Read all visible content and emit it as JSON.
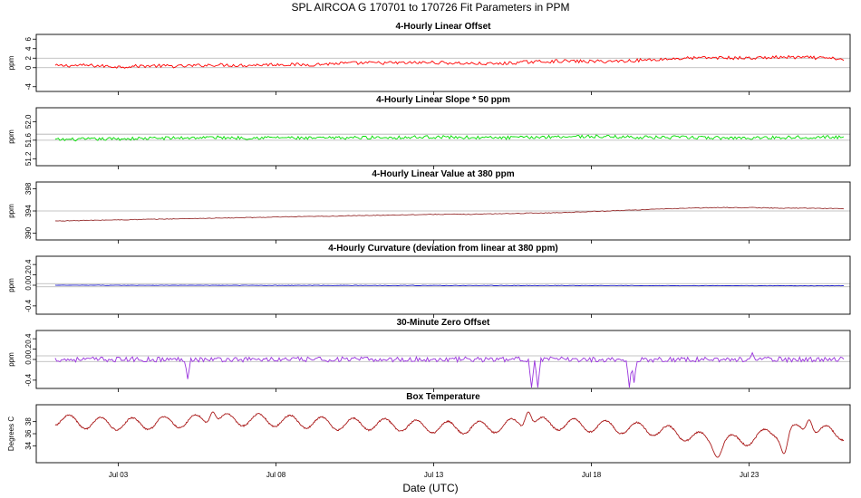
{
  "title": "SPL   AIRCOA G   170701 to 170726   Fit Parameters in PPM",
  "xlabel": "Date (UTC)",
  "x_tick_labels": [
    "Jul 03",
    "Jul 08",
    "Jul 13",
    "Jul 18",
    "Jul 23"
  ],
  "chart_data": [
    {
      "type": "line",
      "title": "4-Hourly Linear Offset",
      "ylabel": "ppm",
      "color": "#ff0000",
      "xlim": [
        0.4,
        26.2
      ],
      "ylim": [
        -5,
        7
      ],
      "yticks": [
        "-4",
        "0",
        "2",
        "4",
        "6"
      ],
      "ref_lines": [
        0,
        2
      ],
      "x": [
        1,
        2,
        3,
        4,
        5,
        6,
        7,
        8,
        9,
        10,
        11,
        12,
        13,
        14,
        15,
        16,
        17,
        18,
        19,
        20,
        21,
        22,
        23,
        24,
        25,
        26
      ],
      "values": [
        0.4,
        0.5,
        0.2,
        0.4,
        0.3,
        0.6,
        0.5,
        0.7,
        0.6,
        0.9,
        1.0,
        1.0,
        1.1,
        0.9,
        0.8,
        1.2,
        1.4,
        1.3,
        1.4,
        1.7,
        2.0,
        2.1,
        2.0,
        2.2,
        2.1,
        1.8
      ],
      "noise": 0.35
    },
    {
      "type": "line",
      "title": "4-Hourly Linear Slope * 50 ppm",
      "ylabel": "ppm",
      "color": "#00dd00",
      "xlim": [
        0.4,
        26.2
      ],
      "ylim": [
        51.05,
        52.3
      ],
      "yticks": [
        "51.2",
        "51.6",
        "52.0"
      ],
      "ref_lines": [
        51.6,
        51.73
      ],
      "x": [
        1,
        2,
        3,
        4,
        5,
        6,
        7,
        8,
        9,
        10,
        11,
        12,
        13,
        14,
        15,
        16,
        17,
        18,
        19,
        20,
        21,
        22,
        23,
        24,
        25,
        26
      ],
      "values": [
        51.61,
        51.62,
        51.63,
        51.64,
        51.65,
        51.66,
        51.65,
        51.66,
        51.64,
        51.65,
        51.66,
        51.66,
        51.67,
        51.66,
        51.65,
        51.66,
        51.68,
        51.68,
        51.67,
        51.66,
        51.66,
        51.65,
        51.65,
        51.66,
        51.67,
        51.66
      ],
      "noise": 0.035
    },
    {
      "type": "line",
      "title": "4-Hourly Linear Value at 380 ppm",
      "ylabel": "ppm",
      "color": "#993333",
      "xlim": [
        0.4,
        26.2
      ],
      "ylim": [
        388.8,
        399.2
      ],
      "yticks": [
        "390",
        "394",
        "398"
      ],
      "ref_lines": [
        394
      ],
      "x": [
        1,
        2,
        3,
        4,
        5,
        6,
        7,
        8,
        9,
        10,
        11,
        12,
        13,
        14,
        15,
        16,
        17,
        18,
        19,
        20,
        21,
        22,
        23,
        24,
        25,
        26
      ],
      "values": [
        392.2,
        392.3,
        392.4,
        392.5,
        392.6,
        392.7,
        392.8,
        392.9,
        393.0,
        393.1,
        393.2,
        393.3,
        393.4,
        393.4,
        393.5,
        393.6,
        393.7,
        393.9,
        394.1,
        394.3,
        394.5,
        394.6,
        394.6,
        394.5,
        394.5,
        394.4
      ],
      "noise": 0.06
    },
    {
      "type": "line",
      "title": "4-Hourly Curvature (deviation from linear at 380 ppm)",
      "ylabel": "ppm",
      "color": "#2222cc",
      "xlim": [
        0.4,
        26.2
      ],
      "ylim": [
        -0.56,
        0.56
      ],
      "yticks": [
        "-0.4",
        "0.0",
        "0.2",
        "0.4"
      ],
      "ref_lines": [
        -0.03,
        0.03
      ],
      "x": [
        1,
        26
      ],
      "values": [
        0.0,
        -0.01
      ],
      "noise": 0.004
    },
    {
      "type": "line",
      "title": "30-Minute Zero Offset",
      "ylabel": "ppm",
      "color": "#9933dd",
      "xlim": [
        0.4,
        26.2
      ],
      "ylim": [
        -0.56,
        0.56
      ],
      "yticks": [
        "-0.4",
        "0.0",
        "0.2",
        "0.4"
      ],
      "ref_lines": [
        -0.04,
        0.07
      ],
      "x": [
        1,
        26
      ],
      "values": [
        0.0,
        0.0
      ],
      "noise": 0.05,
      "spikes": [
        {
          "x": 5.2,
          "y": -0.38
        },
        {
          "x": 16.1,
          "y": -0.62
        },
        {
          "x": 16.3,
          "y": -0.58
        },
        {
          "x": 19.2,
          "y": -0.6
        },
        {
          "x": 19.35,
          "y": -0.45
        },
        {
          "x": 23.1,
          "y": 0.13
        }
      ]
    },
    {
      "type": "line",
      "title": "Box Temperature",
      "ylabel": "Degrees C",
      "color": "#aa1a1a",
      "xlim": [
        0.4,
        26.2
      ],
      "ylim": [
        31.2,
        40.8
      ],
      "yticks": [
        "34",
        "36",
        "38"
      ],
      "ref_lines": [],
      "x": [
        1,
        2,
        3,
        4,
        5,
        6,
        7,
        8,
        9,
        10,
        11,
        12,
        13,
        14,
        15,
        16,
        17,
        18,
        19,
        20,
        21,
        22,
        23,
        24,
        25,
        26
      ],
      "values": [
        38.3,
        37.8,
        37.6,
        37.7,
        38.0,
        38.3,
        38.3,
        38.2,
        37.9,
        37.6,
        37.6,
        37.4,
        37.1,
        37.0,
        37.2,
        37.8,
        37.6,
        37.3,
        37.0,
        36.7,
        35.8,
        34.6,
        35.1,
        36.5,
        36.6,
        35.9
      ],
      "amp": 1.0,
      "noise": 0.12,
      "events": [
        {
          "x": 6.0,
          "y": 39.6
        },
        {
          "x": 16.0,
          "y": 39.6
        },
        {
          "x": 22.0,
          "y": 32.1
        },
        {
          "x": 24.1,
          "y": 32.7
        },
        {
          "x": 24.9,
          "y": 38.3
        }
      ]
    }
  ]
}
